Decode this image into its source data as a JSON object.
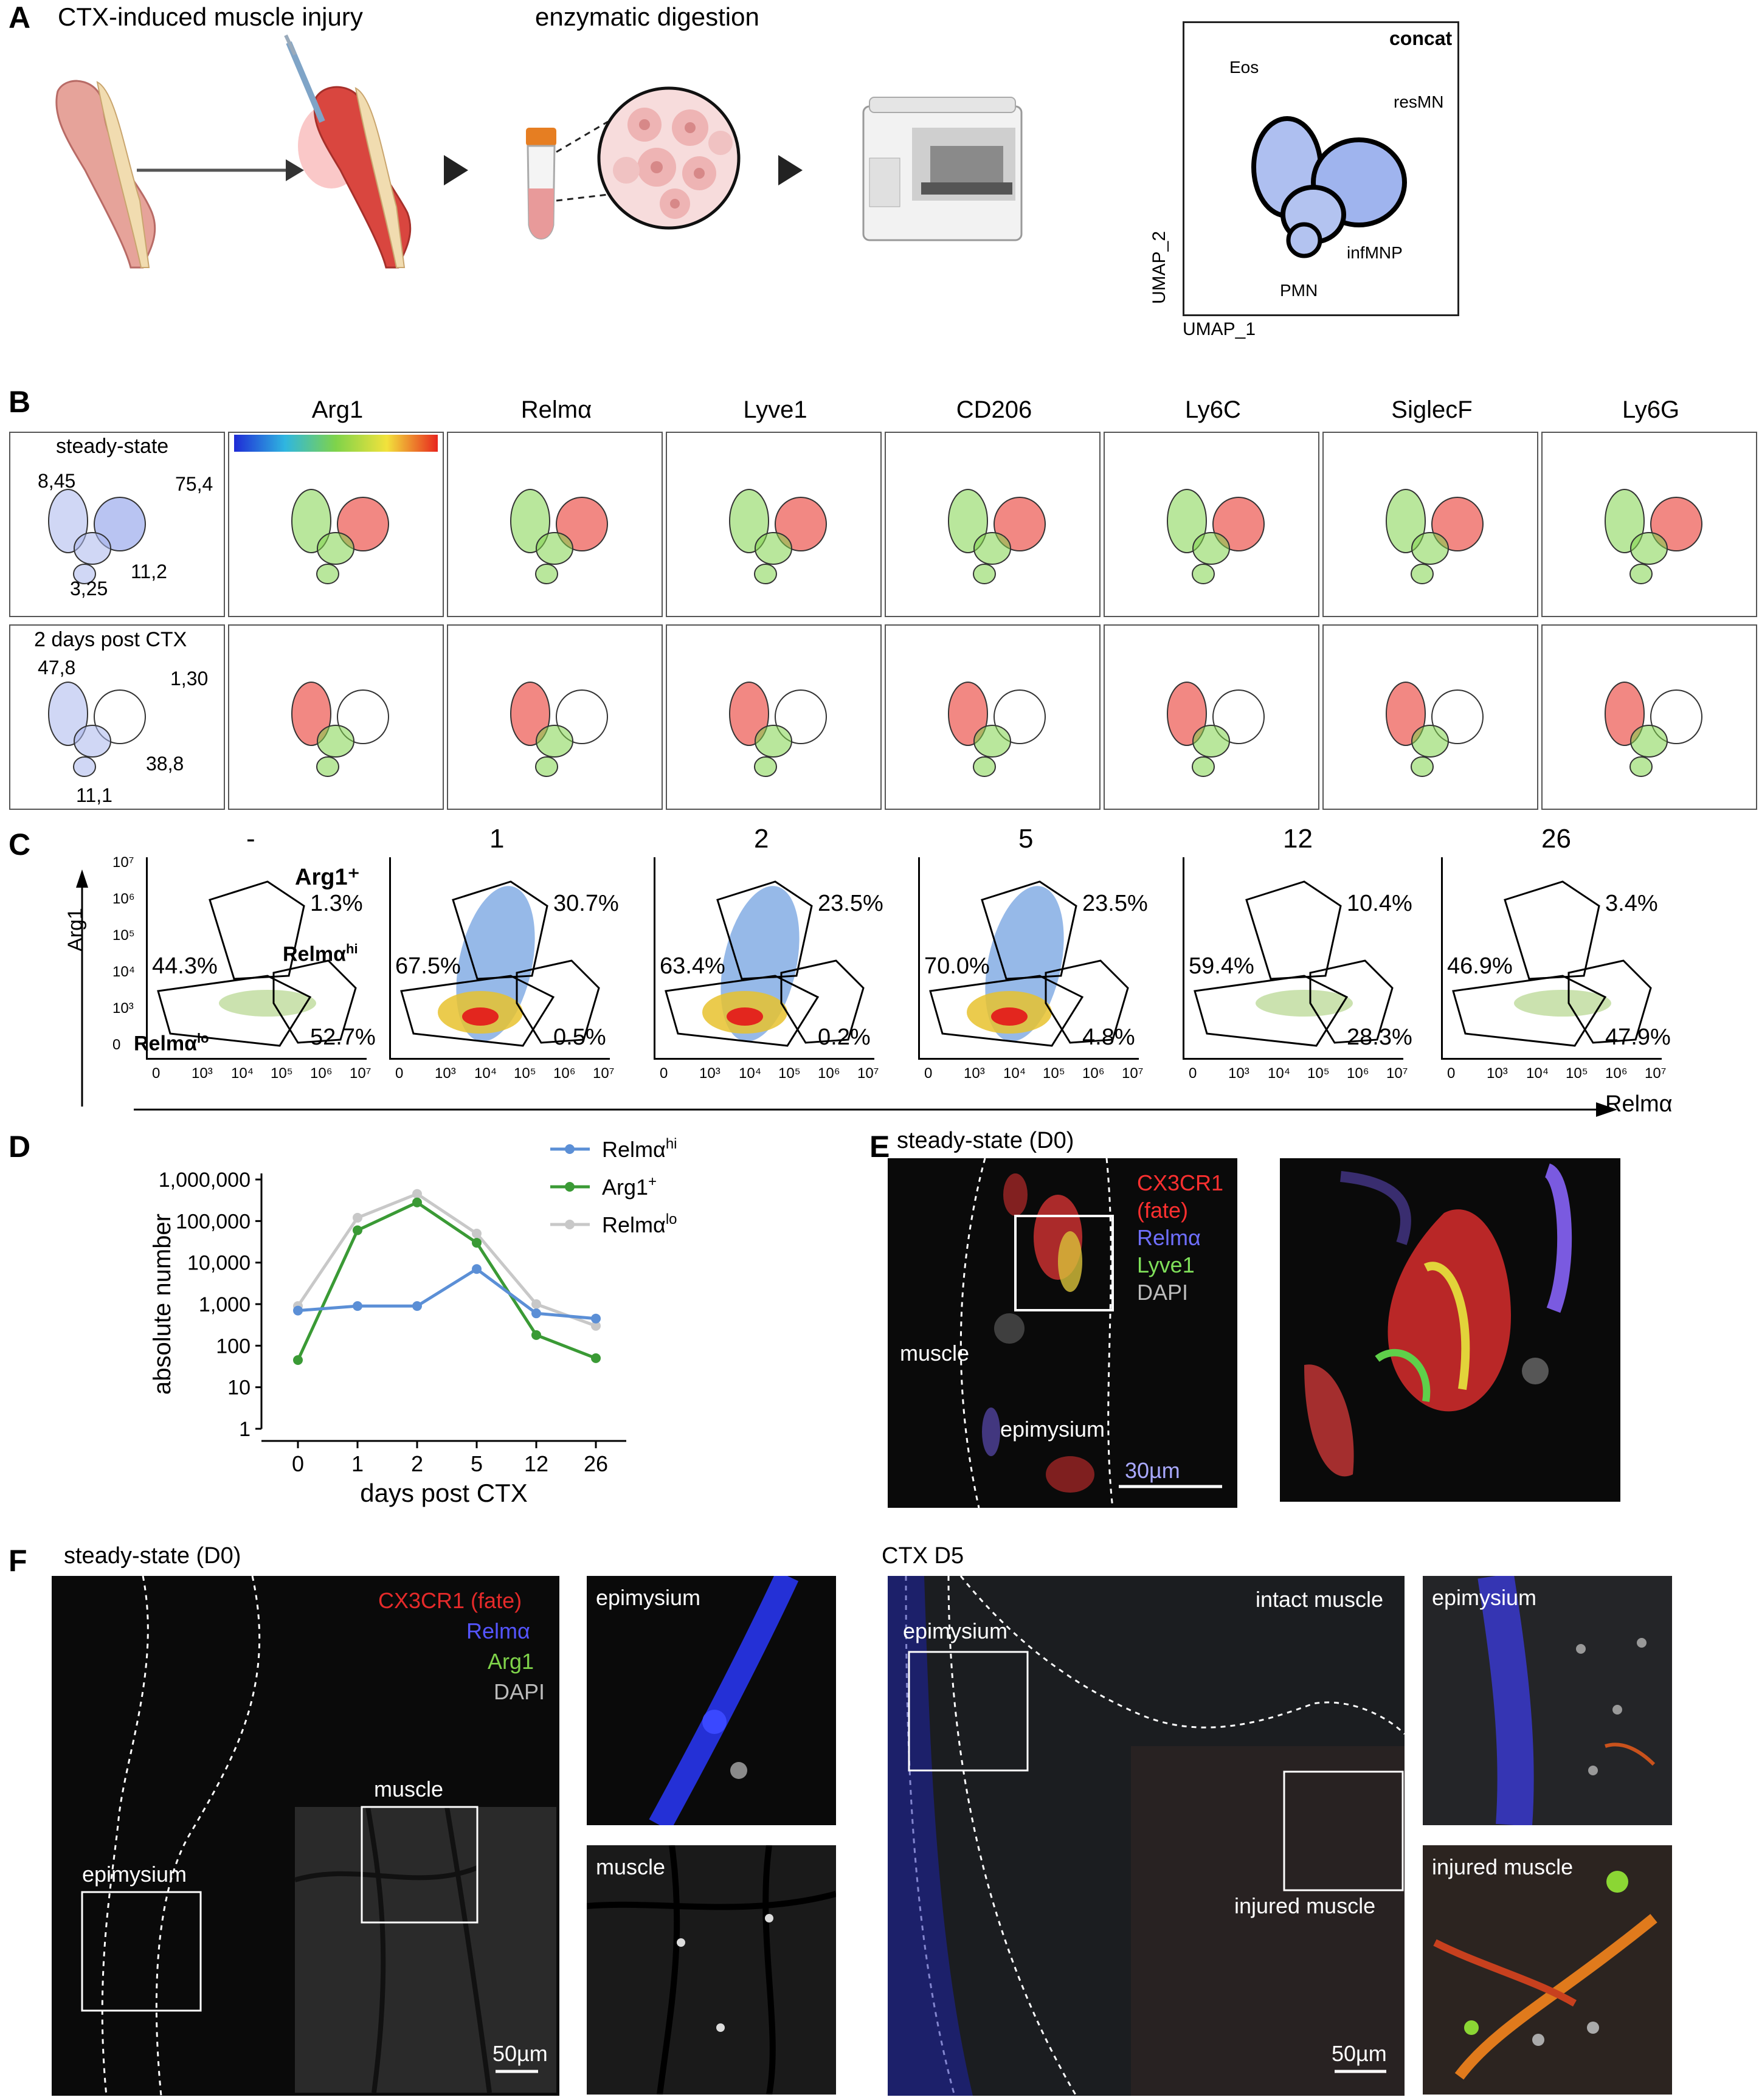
{
  "panels": {
    "A": "A",
    "B": "B",
    "C": "C",
    "D": "D",
    "E": "E",
    "F": "F"
  },
  "panelA": {
    "step1": "CTX-induced muscle injury",
    "step2": "enzymatic digestion",
    "umap": {
      "title": "concat",
      "xlabel": "UMAP_1",
      "ylabel": "UMAP_2",
      "clusters": {
        "eos": "Eos",
        "resmn": "resMN",
        "infmnp": "infMNP",
        "pmn": "PMN"
      }
    }
  },
  "panelB": {
    "markers": [
      "Arg1",
      "Relmα",
      "Lyve1",
      "CD206",
      "Ly6C",
      "SiglecF",
      "Ly6G"
    ],
    "rows": [
      {
        "label": "steady-state",
        "eos": "8,45",
        "resmn": "75,4",
        "pmn": "3,25",
        "infmnp": "11,2"
      },
      {
        "label": "2 days post CTX",
        "eos": "47,8",
        "resmn": "1,30",
        "pmn": "11,1",
        "infmnp": "38,8"
      }
    ],
    "colors": {
      "low": "#1f2bd6",
      "mid": "#7fd34a",
      "high": "#e8261e"
    }
  },
  "panelC": {
    "y_axis": "Arg1",
    "x_axis": "Relmα",
    "gate_arg1": "Arg1⁺",
    "gate_hi": "Relmα",
    "gate_hi_sup": "hi",
    "gate_lo": "Relmα",
    "gate_lo_sup": "lo",
    "yticks": [
      "10⁷",
      "10⁶",
      "10⁵",
      "10⁴",
      "10³",
      "0"
    ],
    "xticks": [
      "0",
      "10³",
      "10⁴",
      "10⁵",
      "10⁶",
      "10⁷"
    ],
    "plots": [
      {
        "title": "-",
        "arg1": "1.3%",
        "lo": "44.3%",
        "hi": "52.7%"
      },
      {
        "title": "1",
        "arg1": "30.7%",
        "lo": "67.5%",
        "hi": "0.5%"
      },
      {
        "title": "2",
        "arg1": "23.5%",
        "lo": "63.4%",
        "hi": "0.2%"
      },
      {
        "title": "5",
        "arg1": "23.5%",
        "lo": "70.0%",
        "hi": "4.8%"
      },
      {
        "title": "12",
        "arg1": "10.4%",
        "lo": "59.4%",
        "hi": "28.3%"
      },
      {
        "title": "26",
        "arg1": "3.4%",
        "lo": "46.9%",
        "hi": "47.9%"
      }
    ]
  },
  "chart_data": {
    "type": "line",
    "xlabel": "days post CTX",
    "ylabel": "absolute number",
    "x": [
      "0",
      "1",
      "2",
      "5",
      "12",
      "26"
    ],
    "yscale": "log",
    "ylim": [
      1,
      1000000
    ],
    "yticks": [
      "1,000,000",
      "100,000",
      "10,000",
      "1,000",
      "100",
      "10",
      "1"
    ],
    "series": [
      {
        "name": "Relmα",
        "name_sup": "hi",
        "color": "#5b8fd6",
        "values": [
          700,
          900,
          900,
          7000,
          600,
          450
        ]
      },
      {
        "name": "Arg1",
        "name_sup": "+",
        "color": "#3a9a35",
        "values": [
          45,
          60000,
          280000,
          30000,
          180,
          50
        ]
      },
      {
        "name": "Relmα",
        "name_sup": "lo",
        "color": "#c8c8c8",
        "values": [
          900,
          120000,
          450000,
          50000,
          1000,
          300
        ]
      }
    ],
    "legend": "top-right"
  },
  "panelE": {
    "title": "steady-state (D0)",
    "legend": [
      "CX3CR1",
      "(fate)",
      "Relmα",
      "Lyve1",
      "DAPI"
    ],
    "muscle": "muscle",
    "epimysium": "epimysium",
    "scale": "30µm"
  },
  "panelF": {
    "left_title": "steady-state (D0)",
    "legend": [
      "CX3CR1 (fate)",
      "Relmα",
      "Arg1",
      "DAPI"
    ],
    "left_epimysium": "epimysium",
    "left_muscle": "muscle",
    "scale1": "50µm",
    "inset1": "epimysium",
    "inset2": "muscle",
    "right_title": "CTX D5",
    "right_epimysium": "epimysium",
    "intact": "intact muscle",
    "injured": "injured muscle",
    "scale2": "50µm",
    "inset3": "epimysium",
    "inset4": "injured muscle"
  }
}
